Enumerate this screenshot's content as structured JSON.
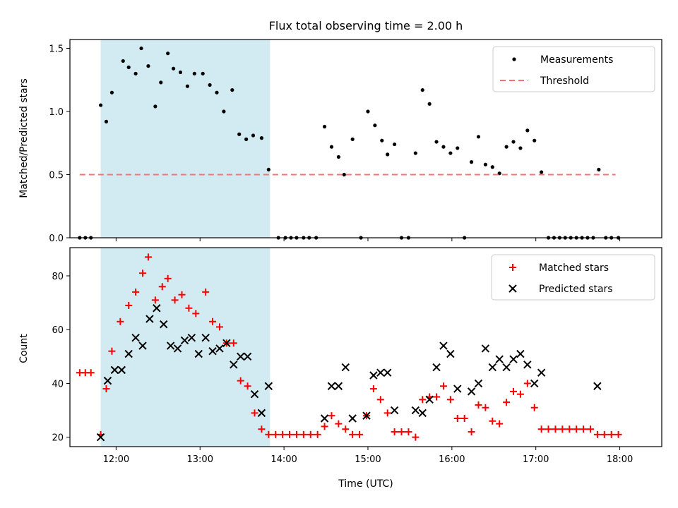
{
  "figure": {
    "title": "Flux total observing time = 2.00 h"
  },
  "chart_data": [
    {
      "type": "scatter",
      "panel": "top",
      "title": "Flux total observing time = 2.00 h",
      "xlabel": "",
      "ylabel": "Matched/Predicted stars",
      "xlim": [
        "11:27",
        "18:30"
      ],
      "ylim": [
        0.0,
        1.57
      ],
      "yticks": [
        "0.0",
        "0.5",
        "1.0",
        "1.5"
      ],
      "xticks": [
        "12:00",
        "13:00",
        "14:00",
        "15:00",
        "16:00",
        "17:00",
        "18:00"
      ],
      "shaded_region": {
        "start": "11:49",
        "end": "13:50",
        "color": "#add8e6"
      },
      "legend_position": "top-right",
      "series": [
        {
          "name": "Measurements",
          "style": "dots",
          "color": "#000000",
          "points": [
            [
              "11:34",
              0.0
            ],
            [
              "11:38",
              0.0
            ],
            [
              "11:42",
              0.0
            ],
            [
              "11:49",
              1.05
            ],
            [
              "11:53",
              0.92
            ],
            [
              "11:57",
              1.15
            ],
            [
              "12:05",
              1.4
            ],
            [
              "12:09",
              1.35
            ],
            [
              "12:14",
              1.3
            ],
            [
              "12:18",
              1.5
            ],
            [
              "12:23",
              1.36
            ],
            [
              "12:28",
              1.04
            ],
            [
              "12:32",
              1.23
            ],
            [
              "12:37",
              1.46
            ],
            [
              "12:41",
              1.34
            ],
            [
              "12:46",
              1.31
            ],
            [
              "12:51",
              1.2
            ],
            [
              "12:56",
              1.3
            ],
            [
              "13:02",
              1.3
            ],
            [
              "13:07",
              1.21
            ],
            [
              "13:12",
              1.15
            ],
            [
              "13:17",
              1.0
            ],
            [
              "13:23",
              1.17
            ],
            [
              "13:28",
              0.82
            ],
            [
              "13:33",
              0.78
            ],
            [
              "13:38",
              0.81
            ],
            [
              "13:44",
              0.79
            ],
            [
              "13:49",
              0.54
            ],
            [
              "13:56",
              0.0
            ],
            [
              "14:01",
              0.0
            ],
            [
              "14:05",
              0.0
            ],
            [
              "14:09",
              0.0
            ],
            [
              "14:14",
              0.0
            ],
            [
              "14:18",
              0.0
            ],
            [
              "14:23",
              0.0
            ],
            [
              "14:29",
              0.88
            ],
            [
              "14:34",
              0.72
            ],
            [
              "14:39",
              0.64
            ],
            [
              "14:43",
              0.5
            ],
            [
              "14:49",
              0.78
            ],
            [
              "14:55",
              0.0
            ],
            [
              "15:00",
              1.0
            ],
            [
              "15:05",
              0.89
            ],
            [
              "15:10",
              0.77
            ],
            [
              "15:14",
              0.66
            ],
            [
              "15:19",
              0.74
            ],
            [
              "15:24",
              0.0
            ],
            [
              "15:29",
              0.0
            ],
            [
              "15:34",
              0.67
            ],
            [
              "15:39",
              1.17
            ],
            [
              "15:44",
              1.06
            ],
            [
              "15:49",
              0.76
            ],
            [
              "15:54",
              0.72
            ],
            [
              "15:59",
              0.67
            ],
            [
              "16:04",
              0.71
            ],
            [
              "16:09",
              0.0
            ],
            [
              "16:14",
              0.6
            ],
            [
              "16:19",
              0.8
            ],
            [
              "16:24",
              0.58
            ],
            [
              "16:29",
              0.56
            ],
            [
              "16:34",
              0.51
            ],
            [
              "16:39",
              0.72
            ],
            [
              "16:44",
              0.76
            ],
            [
              "16:49",
              0.71
            ],
            [
              "16:54",
              0.85
            ],
            [
              "16:59",
              0.77
            ],
            [
              "17:04",
              0.52
            ],
            [
              "17:09",
              0.0
            ],
            [
              "17:13",
              0.0
            ],
            [
              "17:17",
              0.0
            ],
            [
              "17:21",
              0.0
            ],
            [
              "17:25",
              0.0
            ],
            [
              "17:29",
              0.0
            ],
            [
              "17:33",
              0.0
            ],
            [
              "17:37",
              0.0
            ],
            [
              "17:41",
              0.0
            ],
            [
              "17:45",
              0.54
            ],
            [
              "17:50",
              0.0
            ],
            [
              "17:54",
              0.0
            ],
            [
              "17:59",
              0.0
            ]
          ]
        },
        {
          "name": "Threshold",
          "style": "dashed-line",
          "color": "#ff7070",
          "points": [
            [
              "11:34",
              0.5
            ],
            [
              "17:57",
              0.5
            ]
          ]
        }
      ]
    },
    {
      "type": "scatter",
      "panel": "bottom",
      "title": "",
      "xlabel": "Time (UTC)",
      "ylabel": "Count",
      "xlim": [
        "11:27",
        "18:30"
      ],
      "ylim": [
        16.5,
        90.5
      ],
      "yticks": [
        "20",
        "40",
        "60",
        "80"
      ],
      "xticks": [
        "12:00",
        "13:00",
        "14:00",
        "15:00",
        "16:00",
        "17:00",
        "18:00"
      ],
      "shaded_region": {
        "start": "11:49",
        "end": "13:50",
        "color": "#add8e6"
      },
      "legend_position": "top-right",
      "series": [
        {
          "name": "Matched stars",
          "marker": "+",
          "color": "#ff0000",
          "points": [
            [
              "11:34",
              44
            ],
            [
              "11:38",
              44
            ],
            [
              "11:42",
              44
            ],
            [
              "11:49",
              21
            ],
            [
              "11:53",
              38
            ],
            [
              "11:57",
              52
            ],
            [
              "12:03",
              63
            ],
            [
              "12:09",
              69
            ],
            [
              "12:14",
              74
            ],
            [
              "12:19",
              81
            ],
            [
              "12:23",
              87
            ],
            [
              "12:28",
              71
            ],
            [
              "12:33",
              76
            ],
            [
              "12:37",
              79
            ],
            [
              "12:42",
              71
            ],
            [
              "12:47",
              73
            ],
            [
              "12:52",
              68
            ],
            [
              "12:57",
              66
            ],
            [
              "13:04",
              74
            ],
            [
              "13:09",
              63
            ],
            [
              "13:14",
              61
            ],
            [
              "13:19",
              55
            ],
            [
              "13:24",
              55
            ],
            [
              "13:29",
              41
            ],
            [
              "13:34",
              39
            ],
            [
              "13:39",
              29
            ],
            [
              "13:44",
              23
            ],
            [
              "13:49",
              21
            ],
            [
              "13:54",
              21
            ],
            [
              "13:59",
              21
            ],
            [
              "14:04",
              21
            ],
            [
              "14:09",
              21
            ],
            [
              "14:14",
              21
            ],
            [
              "14:19",
              21
            ],
            [
              "14:24",
              21
            ],
            [
              "14:29",
              24
            ],
            [
              "14:34",
              28
            ],
            [
              "14:39",
              25
            ],
            [
              "14:44",
              23
            ],
            [
              "14:49",
              21
            ],
            [
              "14:54",
              21
            ],
            [
              "14:59",
              28
            ],
            [
              "15:04",
              38
            ],
            [
              "15:09",
              34
            ],
            [
              "15:14",
              29
            ],
            [
              "15:19",
              22
            ],
            [
              "15:24",
              22
            ],
            [
              "15:29",
              22
            ],
            [
              "15:34",
              20
            ],
            [
              "15:39",
              34
            ],
            [
              "15:44",
              35
            ],
            [
              "15:49",
              35
            ],
            [
              "15:54",
              39
            ],
            [
              "15:59",
              34
            ],
            [
              "16:04",
              27
            ],
            [
              "16:09",
              27
            ],
            [
              "16:14",
              22
            ],
            [
              "16:19",
              32
            ],
            [
              "16:24",
              31
            ],
            [
              "16:29",
              26
            ],
            [
              "16:34",
              25
            ],
            [
              "16:39",
              33
            ],
            [
              "16:44",
              37
            ],
            [
              "16:49",
              36
            ],
            [
              "16:54",
              40
            ],
            [
              "16:59",
              31
            ],
            [
              "17:04",
              23
            ],
            [
              "17:09",
              23
            ],
            [
              "17:14",
              23
            ],
            [
              "17:19",
              23
            ],
            [
              "17:24",
              23
            ],
            [
              "17:29",
              23
            ],
            [
              "17:34",
              23
            ],
            [
              "17:39",
              23
            ],
            [
              "17:44",
              21
            ],
            [
              "17:49",
              21
            ],
            [
              "17:54",
              21
            ],
            [
              "17:59",
              21
            ]
          ]
        },
        {
          "name": "Predicted stars",
          "marker": "x",
          "color": "#000000",
          "points": [
            [
              "11:49",
              20
            ],
            [
              "11:54",
              41
            ],
            [
              "11:59",
              45
            ],
            [
              "12:04",
              45
            ],
            [
              "12:09",
              51
            ],
            [
              "12:14",
              57
            ],
            [
              "12:19",
              54
            ],
            [
              "12:24",
              64
            ],
            [
              "12:29",
              68
            ],
            [
              "12:34",
              62
            ],
            [
              "12:39",
              54
            ],
            [
              "12:44",
              53
            ],
            [
              "12:49",
              56
            ],
            [
              "12:54",
              57
            ],
            [
              "12:59",
              51
            ],
            [
              "13:04",
              57
            ],
            [
              "13:09",
              52
            ],
            [
              "13:14",
              53
            ],
            [
              "13:19",
              55
            ],
            [
              "13:24",
              47
            ],
            [
              "13:29",
              50
            ],
            [
              "13:34",
              50
            ],
            [
              "13:39",
              36
            ],
            [
              "13:44",
              29
            ],
            [
              "13:49",
              39
            ],
            [
              "14:29",
              27
            ],
            [
              "14:34",
              39
            ],
            [
              "14:39",
              39
            ],
            [
              "14:44",
              46
            ],
            [
              "14:49",
              27
            ],
            [
              "14:59",
              28
            ],
            [
              "15:04",
              43
            ],
            [
              "15:09",
              44
            ],
            [
              "15:14",
              44
            ],
            [
              "15:19",
              30
            ],
            [
              "15:34",
              30
            ],
            [
              "15:39",
              29
            ],
            [
              "15:44",
              34
            ],
            [
              "15:49",
              46
            ],
            [
              "15:54",
              54
            ],
            [
              "15:59",
              51
            ],
            [
              "16:04",
              38
            ],
            [
              "16:14",
              37
            ],
            [
              "16:19",
              40
            ],
            [
              "16:24",
              53
            ],
            [
              "16:29",
              46
            ],
            [
              "16:34",
              49
            ],
            [
              "16:39",
              46
            ],
            [
              "16:44",
              49
            ],
            [
              "16:49",
              51
            ],
            [
              "16:54",
              47
            ],
            [
              "16:59",
              40
            ],
            [
              "17:04",
              44
            ],
            [
              "17:44",
              39
            ]
          ]
        }
      ]
    }
  ]
}
